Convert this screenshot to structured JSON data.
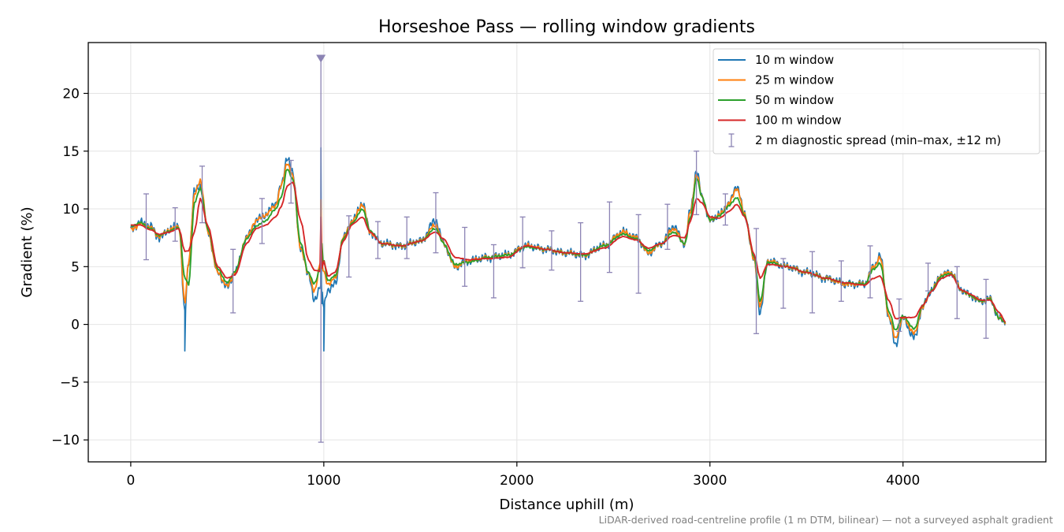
{
  "chart_data": {
    "type": "line",
    "title": "Horseshoe Pass — rolling window gradients",
    "xlabel": "Distance uphill (m)",
    "ylabel": "Gradient (%)",
    "footnote": "LiDAR-derived road-centreline profile (1 m DTM, bilinear) — not a surveyed asphalt gradient",
    "xlim": [
      -220,
      4740
    ],
    "ylim": [
      -11.9,
      24.4
    ],
    "xticks": [
      0,
      1000,
      2000,
      3000,
      4000
    ],
    "xtick_labels": [
      "0",
      "1000",
      "2000",
      "3000",
      "4000"
    ],
    "yticks": [
      -10,
      -5,
      0,
      5,
      10,
      15,
      20
    ],
    "ytick_labels": [
      "−10",
      "−5",
      "0",
      "5",
      "10",
      "15",
      "20"
    ],
    "grid": true,
    "legend_position": "top-right",
    "colors": {
      "w10": "#1f77b4",
      "w25": "#ff7f0e",
      "w50": "#2ca02c",
      "w100": "#d62728",
      "spread": "#8c84b4"
    },
    "legend": [
      {
        "key": "w10",
        "label": "10 m window",
        "kind": "line"
      },
      {
        "key": "w25",
        "label": "25 m window",
        "kind": "line"
      },
      {
        "key": "w50",
        "label": "50 m window",
        "kind": "line"
      },
      {
        "key": "w100",
        "label": "100 m window",
        "kind": "line"
      },
      {
        "key": "spread",
        "label": "2 m diagnostic spread (min–max, ±12 m)",
        "kind": "errorbar"
      }
    ],
    "profile_x": [
      0,
      50,
      100,
      150,
      200,
      250,
      280,
      300,
      330,
      360,
      400,
      450,
      500,
      540,
      600,
      650,
      700,
      750,
      780,
      810,
      840,
      880,
      920,
      950,
      985,
      1000,
      1020,
      1060,
      1100,
      1150,
      1200,
      1240,
      1300,
      1400,
      1500,
      1580,
      1620,
      1680,
      1750,
      1850,
      1950,
      2050,
      2150,
      2250,
      2350,
      2450,
      2550,
      2620,
      2680,
      2750,
      2810,
      2870,
      2900,
      2930,
      2960,
      3000,
      3050,
      3100,
      3140,
      3180,
      3230,
      3260,
      3300,
      3400,
      3500,
      3600,
      3700,
      3800,
      3850,
      3880,
      3930,
      3960,
      4000,
      4060,
      4100,
      4150,
      4200,
      4250,
      4300,
      4350,
      4400,
      4450,
      4500,
      4530
    ],
    "series": [
      {
        "name": "10 m window",
        "key": "w10",
        "noise": 0.45,
        "spikes": [
          [
            280,
            -2.3
          ],
          [
            985,
            15.3
          ],
          [
            1000,
            -2.3
          ],
          [
            990,
            1.8
          ]
        ],
        "values": [
          8.2,
          8.8,
          8.5,
          7.5,
          8.2,
          8.6,
          1.0,
          5.5,
          11.5,
          12.0,
          8.0,
          4.5,
          3.2,
          4.5,
          7.5,
          9.0,
          9.5,
          10.5,
          12.0,
          14.5,
          13.0,
          6.5,
          4.5,
          2.0,
          3.5,
          1.5,
          3.0,
          3.5,
          7.5,
          9.0,
          10.5,
          8.0,
          7.0,
          6.8,
          7.2,
          9.0,
          7.0,
          5.0,
          5.5,
          5.8,
          6.0,
          6.8,
          6.5,
          6.2,
          6.0,
          6.8,
          8.0,
          7.5,
          6.2,
          7.0,
          8.5,
          7.0,
          10.0,
          13.3,
          11.0,
          9.0,
          9.5,
          10.5,
          12.0,
          9.5,
          5.5,
          1.0,
          5.5,
          5.0,
          4.5,
          4.0,
          3.5,
          3.5,
          5.0,
          6.0,
          0.5,
          -1.8,
          0.5,
          -1.2,
          1.5,
          3.0,
          4.3,
          4.5,
          3.0,
          2.5,
          2.0,
          2.2,
          0.5,
          0.2
        ]
      },
      {
        "name": "25 m window",
        "key": "w25",
        "noise": 0.25,
        "spikes": [
          [
            985,
            10.8
          ]
        ],
        "values": [
          8.2,
          8.7,
          8.4,
          7.6,
          8.2,
          8.5,
          1.8,
          5.5,
          11.2,
          12.5,
          8.0,
          4.5,
          3.3,
          4.5,
          7.5,
          9.0,
          9.5,
          10.3,
          12.0,
          14.0,
          12.8,
          6.5,
          4.5,
          2.8,
          5.5,
          4.5,
          3.5,
          4.0,
          7.5,
          9.0,
          10.4,
          8.0,
          7.0,
          6.8,
          7.2,
          8.6,
          7.0,
          5.0,
          5.5,
          5.8,
          6.0,
          6.8,
          6.5,
          6.2,
          6.0,
          6.8,
          8.0,
          7.5,
          6.2,
          7.0,
          8.3,
          7.0,
          9.8,
          13.0,
          11.0,
          9.0,
          9.5,
          10.5,
          11.8,
          9.5,
          5.5,
          1.6,
          5.5,
          5.0,
          4.5,
          4.0,
          3.5,
          3.5,
          5.0,
          5.8,
          0.6,
          -1.2,
          0.6,
          -0.8,
          1.5,
          3.0,
          4.3,
          4.5,
          3.0,
          2.5,
          2.0,
          2.2,
          0.5,
          0.2
        ]
      },
      {
        "name": "50 m window",
        "key": "w50",
        "noise": 0.12,
        "spikes": [
          [
            990,
            7.0
          ]
        ],
        "values": [
          8.5,
          8.8,
          8.3,
          7.7,
          8.1,
          8.4,
          4.0,
          3.5,
          10.5,
          11.8,
          8.2,
          4.8,
          3.6,
          4.6,
          7.4,
          8.5,
          9.0,
          10.0,
          11.0,
          13.5,
          12.5,
          7.0,
          4.5,
          3.5,
          5.0,
          5.5,
          3.8,
          4.2,
          7.4,
          8.8,
          10.0,
          8.1,
          7.0,
          6.8,
          7.2,
          8.3,
          7.0,
          5.2,
          5.4,
          5.8,
          6.0,
          6.7,
          6.5,
          6.2,
          6.0,
          6.8,
          7.8,
          7.4,
          6.4,
          7.0,
          8.0,
          7.0,
          9.3,
          12.7,
          11.0,
          9.0,
          9.4,
          10.3,
          11.0,
          9.4,
          5.8,
          2.0,
          5.4,
          5.0,
          4.5,
          4.0,
          3.6,
          3.5,
          4.8,
          5.3,
          1.0,
          -0.5,
          0.7,
          -0.4,
          1.6,
          3.0,
          4.2,
          4.4,
          3.0,
          2.5,
          2.0,
          2.2,
          0.5,
          0.2
        ]
      },
      {
        "name": "100 m window",
        "key": "w100",
        "noise": 0.04,
        "spikes": [
          [
            985,
            9.3
          ]
        ],
        "values": [
          8.6,
          8.6,
          8.2,
          7.8,
          8.0,
          8.3,
          6.3,
          6.4,
          8.0,
          10.9,
          8.5,
          5.0,
          4.0,
          4.3,
          7.0,
          8.3,
          8.6,
          9.3,
          10.2,
          12.0,
          12.3,
          9.0,
          5.6,
          4.7,
          4.6,
          5.5,
          4.2,
          4.5,
          7.2,
          8.7,
          9.3,
          8.0,
          7.0,
          6.8,
          7.2,
          8.0,
          7.4,
          5.8,
          5.6,
          5.7,
          5.8,
          6.8,
          6.5,
          6.2,
          6.1,
          6.6,
          7.6,
          7.3,
          6.6,
          7.0,
          7.7,
          7.5,
          9.0,
          10.9,
          10.5,
          9.3,
          9.2,
          9.8,
          10.4,
          9.3,
          6.0,
          4.0,
          5.2,
          5.0,
          4.5,
          4.0,
          3.6,
          3.4,
          4.0,
          4.2,
          2.0,
          0.5,
          0.6,
          0.6,
          1.6,
          2.9,
          4.0,
          4.3,
          3.0,
          2.6,
          2.1,
          2.1,
          1.0,
          0.2
        ]
      }
    ],
    "spread": {
      "name": "2 m diagnostic spread (min–max, ±12 m)",
      "x": [
        80,
        230,
        370,
        530,
        680,
        830,
        985,
        1130,
        1280,
        1430,
        1580,
        1730,
        1880,
        2030,
        2180,
        2330,
        2480,
        2630,
        2780,
        2930,
        3080,
        3240,
        3380,
        3530,
        3680,
        3830,
        3980,
        4130,
        4280,
        4430
      ],
      "low": [
        5.6,
        7.2,
        8.8,
        1.0,
        7.0,
        10.5,
        -10.2,
        4.1,
        5.7,
        5.7,
        6.2,
        3.3,
        2.3,
        4.9,
        4.7,
        2.0,
        4.5,
        2.7,
        6.5,
        9.5,
        8.6,
        -0.8,
        1.4,
        1.0,
        2.0,
        2.3,
        -0.6,
        2.9,
        0.5,
        -1.2
      ],
      "high": [
        11.3,
        10.1,
        13.7,
        6.5,
        10.9,
        14.2,
        23.0,
        9.4,
        8.9,
        9.3,
        11.4,
        8.4,
        6.9,
        9.3,
        8.1,
        8.8,
        10.6,
        9.5,
        10.4,
        15.0,
        11.3,
        8.3,
        5.7,
        6.3,
        5.5,
        6.8,
        2.2,
        5.3,
        5.0,
        3.9
      ],
      "clipped_top_at": 985
    }
  }
}
